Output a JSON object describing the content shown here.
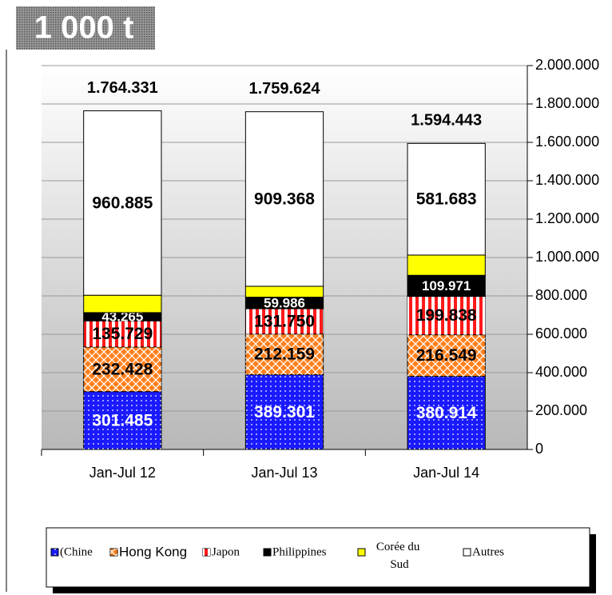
{
  "chart_data": {
    "type": "stacked_bar",
    "title": "1 000 t",
    "categories": [
      "Jan-Jul 12",
      "Jan-Jul 13",
      "Jan-Jul 14"
    ],
    "series": [
      {
        "name": "(Chine",
        "color": "#1a1aff",
        "values": [
          301485,
          389301,
          380914
        ],
        "value_labels": [
          "301.485",
          "389.301",
          "380.914"
        ]
      },
      {
        "name": "Hong Kong",
        "color": "#ff7f1a",
        "values": [
          232428,
          212159,
          216549
        ],
        "value_labels": [
          "232.428",
          "212.159",
          "216.549"
        ]
      },
      {
        "name": "Japon",
        "color": "#ff1a1a",
        "values": [
          135729,
          131750,
          199838
        ],
        "value_labels": [
          "135.729",
          "131.750",
          "199.838"
        ]
      },
      {
        "name": "Philippines",
        "color": "#000000",
        "values": [
          43265,
          59986,
          109971
        ],
        "value_labels": [
          "43.265",
          "59.986",
          "109.971"
        ]
      },
      {
        "name": "Corée du Sud",
        "color": "#ffff00",
        "values": [
          90539,
          57060,
          105488
        ]
      },
      {
        "name": "Autres",
        "color": "#ffffff",
        "values": [
          960885,
          909368,
          581683
        ],
        "value_labels": [
          "960.885",
          "909.368",
          "581.683"
        ]
      }
    ],
    "totals": {
      "values": [
        1764331,
        1759624,
        1594443
      ],
      "value_labels": [
        "1.764.331",
        "1.759.624",
        "1.594.443"
      ]
    },
    "ylim": [
      0,
      2000000
    ],
    "yticks": [
      0,
      {
        "value": 200000,
        "label": "200.000"
      },
      {
        "value": 400000,
        "label": "400.000"
      },
      {
        "value": 600000,
        "label": "600.000"
      },
      {
        "value": 800000,
        "label": "800.000"
      },
      {
        "value": 1000000,
        "label": "1.000.000"
      },
      {
        "value": 1200000,
        "label": "1.200.000"
      },
      {
        "value": 1400000,
        "label": "1.400.000"
      },
      {
        "value": 1600000,
        "label": "1.600.000"
      },
      {
        "value": 1800000,
        "label": "1.800.000"
      },
      {
        "value": 2000000,
        "label": "2.000.000"
      }
    ],
    "grid": true,
    "legend": "bottom"
  }
}
